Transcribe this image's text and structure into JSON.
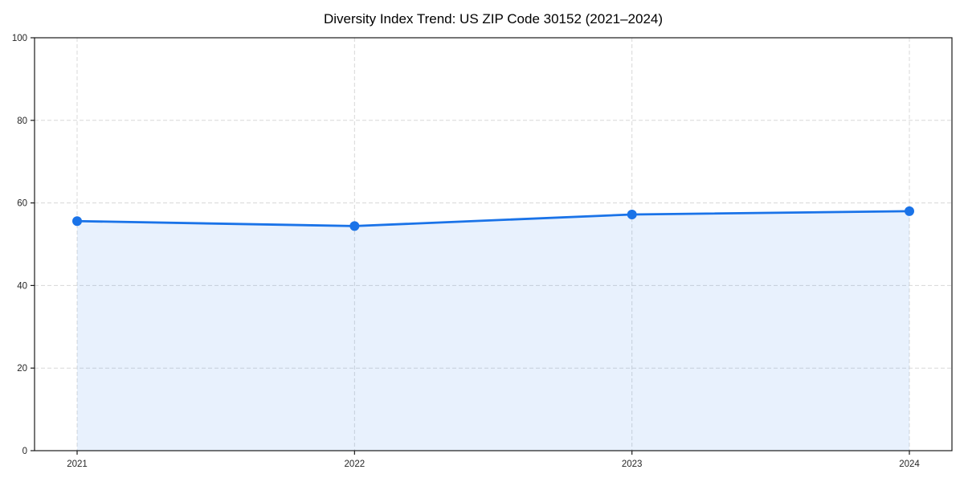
{
  "chart_data": {
    "type": "line",
    "title": "Diversity Index Trend: US ZIP Code 30152 (2021–2024)",
    "x": [
      "2021",
      "2022",
      "2023",
      "2024"
    ],
    "series": [
      {
        "name": "Diversity Index",
        "values": [
          55.6,
          54.4,
          57.2,
          58.0
        ]
      }
    ],
    "xlabel": "",
    "ylabel": "",
    "ylim": [
      0,
      100
    ],
    "yticks": [
      0,
      20,
      40,
      60,
      80,
      100
    ],
    "grid": true,
    "grid_style": "dashed",
    "legend": "none",
    "area_fill": true,
    "marker": "circle",
    "colors": {
      "line": "#1a73e8",
      "marker": "#1a73e8",
      "area_fill": "rgba(26,115,232,0.10)",
      "grid": "#d8d8d8",
      "frame": "#1a1a1a",
      "tick": "#1a1a1a",
      "tick_label": "#262626",
      "title": "#000000",
      "background": "#ffffff",
      "plot_background": "#ffffff"
    }
  }
}
